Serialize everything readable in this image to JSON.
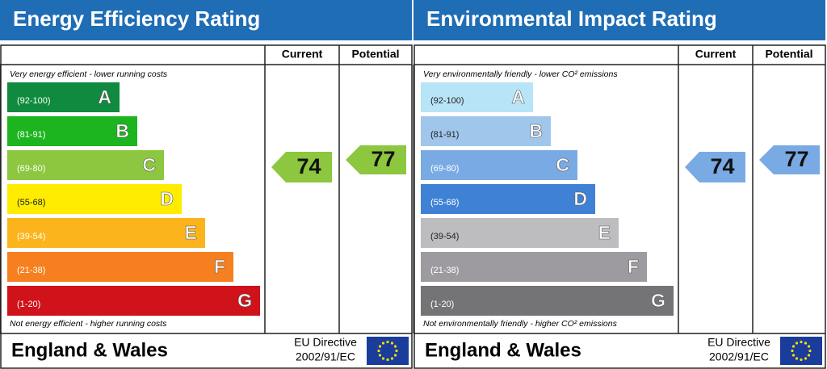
{
  "panels": [
    {
      "title": "Energy Efficiency Rating",
      "header": {
        "current": "Current",
        "potential": "Potential"
      },
      "top_note": "Very energy efficient - lower running costs",
      "bottom_note": "Not energy efficient - higher running costs",
      "bands": [
        {
          "range": "(92-100)",
          "letter": "A",
          "color": "#0f8a3e",
          "text_color": "#ffffff"
        },
        {
          "range": "(81-91)",
          "letter": "B",
          "color": "#1cb51f",
          "text_color": "#ffffff"
        },
        {
          "range": "(69-80)",
          "letter": "C",
          "color": "#8dc63f",
          "text_color": "#ffffff"
        },
        {
          "range": "(55-68)",
          "letter": "D",
          "color": "#ffec00",
          "text_color": "#222222"
        },
        {
          "range": "(39-54)",
          "letter": "E",
          "color": "#fbb41b",
          "text_color": "#ffffff"
        },
        {
          "range": "(21-38)",
          "letter": "F",
          "color": "#f6801f",
          "text_color": "#ffffff"
        },
        {
          "range": "(1-20)",
          "letter": "G",
          "color": "#d0121b",
          "text_color": "#ffffff"
        }
      ],
      "current": 74,
      "potential": 77,
      "arrow_color": "#8dc63f",
      "footer": {
        "region": "England & Wales",
        "directive": "EU Directive",
        "directive_number": "2002/91/EC"
      }
    },
    {
      "title": "Environmental Impact Rating",
      "header": {
        "current": "Current",
        "potential": "Potential"
      },
      "top_note": "Very environmentally friendly - lower CO² emissions",
      "bottom_note": "Not environmentally friendly - higher CO² emissions",
      "bands": [
        {
          "range": "(92-100)",
          "letter": "A",
          "color": "#b8e4f7",
          "text_color": "#222222"
        },
        {
          "range": "(81-91)",
          "letter": "B",
          "color": "#a0c6eb",
          "text_color": "#222222"
        },
        {
          "range": "(69-80)",
          "letter": "C",
          "color": "#7aaae4",
          "text_color": "#ffffff"
        },
        {
          "range": "(55-68)",
          "letter": "D",
          "color": "#3f82d5",
          "text_color": "#ffffff"
        },
        {
          "range": "(39-54)",
          "letter": "E",
          "color": "#bdbdbf",
          "text_color": "#222222"
        },
        {
          "range": "(21-38)",
          "letter": "F",
          "color": "#9d9ba0",
          "text_color": "#ffffff"
        },
        {
          "range": "(1-20)",
          "letter": "G",
          "color": "#747376",
          "text_color": "#ffffff"
        }
      ],
      "current": 74,
      "potential": 77,
      "arrow_color": "#7aaae4",
      "footer": {
        "region": "England & Wales",
        "directive": "EU Directive",
        "directive_number": "2002/91/EC"
      }
    }
  ]
}
